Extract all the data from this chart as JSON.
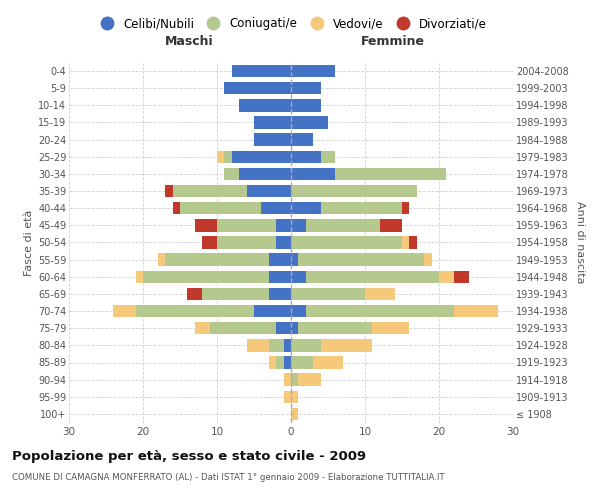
{
  "age_groups": [
    "0-4",
    "5-9",
    "10-14",
    "15-19",
    "20-24",
    "25-29",
    "30-34",
    "35-39",
    "40-44",
    "45-49",
    "50-54",
    "55-59",
    "60-64",
    "65-69",
    "70-74",
    "75-79",
    "80-84",
    "85-89",
    "90-94",
    "95-99",
    "100+"
  ],
  "birth_years": [
    "2004-2008",
    "1999-2003",
    "1994-1998",
    "1989-1993",
    "1984-1988",
    "1979-1983",
    "1974-1978",
    "1969-1973",
    "1964-1968",
    "1959-1963",
    "1954-1958",
    "1949-1953",
    "1944-1948",
    "1939-1943",
    "1934-1938",
    "1929-1933",
    "1924-1928",
    "1919-1923",
    "1914-1918",
    "1909-1913",
    "≤ 1908"
  ],
  "colors": {
    "celibi": "#4472c4",
    "coniugati": "#b5c98e",
    "vedovi": "#f5c87a",
    "divorziati": "#c0392b",
    "background": "#ffffff",
    "grid": "#cccccc"
  },
  "maschi": {
    "celibi": [
      8,
      9,
      7,
      5,
      5,
      8,
      7,
      6,
      4,
      2,
      2,
      3,
      3,
      3,
      5,
      2,
      1,
      1,
      0,
      0,
      0
    ],
    "coniugati": [
      0,
      0,
      0,
      0,
      0,
      1,
      2,
      10,
      11,
      8,
      8,
      14,
      17,
      9,
      16,
      9,
      2,
      1,
      0,
      0,
      0
    ],
    "vedovi": [
      0,
      0,
      0,
      0,
      0,
      1,
      0,
      0,
      0,
      0,
      0,
      1,
      1,
      0,
      3,
      2,
      3,
      1,
      1,
      1,
      0
    ],
    "divorziati": [
      0,
      0,
      0,
      0,
      0,
      0,
      0,
      1,
      1,
      3,
      2,
      0,
      0,
      2,
      0,
      0,
      0,
      0,
      0,
      0,
      0
    ]
  },
  "femmine": {
    "celibi": [
      6,
      4,
      4,
      5,
      3,
      4,
      6,
      0,
      4,
      2,
      0,
      1,
      2,
      0,
      2,
      1,
      0,
      0,
      0,
      0,
      0
    ],
    "coniugati": [
      0,
      0,
      0,
      0,
      0,
      2,
      15,
      17,
      11,
      10,
      15,
      17,
      18,
      10,
      20,
      10,
      4,
      3,
      1,
      0,
      0
    ],
    "vedovi": [
      0,
      0,
      0,
      0,
      0,
      0,
      0,
      0,
      0,
      0,
      1,
      1,
      2,
      4,
      6,
      5,
      7,
      4,
      3,
      1,
      1
    ],
    "divorziati": [
      0,
      0,
      0,
      0,
      0,
      0,
      0,
      0,
      1,
      3,
      1,
      0,
      2,
      0,
      0,
      0,
      0,
      0,
      0,
      0,
      0
    ]
  },
  "xlim": 30,
  "title": "Popolazione per età, sesso e stato civile - 2009",
  "subtitle": "COMUNE DI CAMAGNA MONFERRATO (AL) - Dati ISTAT 1° gennaio 2009 - Elaborazione TUTTITALIA.IT",
  "ylabel_left": "Fasce di età",
  "ylabel_right": "Anni di nascita",
  "header_left": "Maschi",
  "header_right": "Femmine",
  "legend_labels": [
    "Celibi/Nubili",
    "Coniugati/e",
    "Vedovi/e",
    "Divorziati/e"
  ]
}
